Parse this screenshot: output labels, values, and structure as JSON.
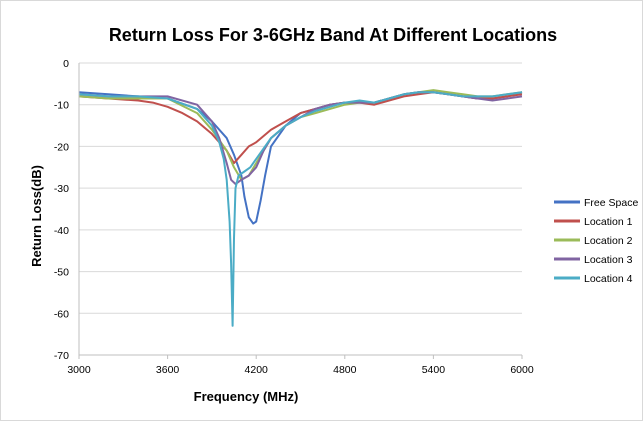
{
  "chart_data": {
    "type": "line",
    "title": "Return Loss For 3-6GHz Band At Different Locations",
    "xlabel": "Frequency  (MHz)",
    "ylabel": "Return Loss(dB)",
    "xlim": [
      3000,
      6000
    ],
    "ylim": [
      -70,
      0
    ],
    "xticks": [
      3000,
      3600,
      4200,
      4800,
      5400,
      6000
    ],
    "yticks": [
      0,
      -10,
      -20,
      -30,
      -40,
      -50,
      -60,
      -70
    ],
    "grid": "horizontal",
    "legend_position": "right",
    "series": [
      {
        "name": "Free Space",
        "color": "#4472C4",
        "x": [
          3000,
          3200,
          3400,
          3600,
          3800,
          3900,
          4000,
          4050,
          4100,
          4120,
          4150,
          4180,
          4200,
          4230,
          4260,
          4300,
          4400,
          4500,
          4600,
          4700,
          4800,
          4900,
          5000,
          5100,
          5200,
          5300,
          5400,
          5500,
          5600,
          5700,
          5800,
          5900,
          6000
        ],
        "y": [
          -7,
          -7.5,
          -8,
          -8.5,
          -11,
          -14,
          -18,
          -22,
          -27,
          -32,
          -37,
          -38.5,
          -38,
          -33,
          -27,
          -20,
          -15,
          -12,
          -11,
          -10,
          -9.5,
          -9.5,
          -9.5,
          -8.5,
          -7.5,
          -7,
          -7,
          -7.5,
          -8,
          -8.5,
          -8.5,
          -8,
          -7
        ]
      },
      {
        "name": "Location 1",
        "color": "#C0504D",
        "x": [
          3000,
          3200,
          3400,
          3500,
          3600,
          3700,
          3800,
          3900,
          4000,
          4050,
          4100,
          4150,
          4200,
          4300,
          4400,
          4500,
          4600,
          4700,
          4800,
          4900,
          5000,
          5100,
          5200,
          5300,
          5400,
          5500,
          5600,
          5700,
          5800,
          5900,
          6000
        ],
        "y": [
          -8,
          -8.5,
          -9,
          -9.5,
          -10.5,
          -12,
          -14,
          -17,
          -21,
          -24,
          -22,
          -20,
          -19,
          -16,
          -14,
          -12,
          -11,
          -10,
          -9.5,
          -9.5,
          -10,
          -9,
          -8,
          -7.5,
          -7,
          -7.5,
          -8,
          -8.5,
          -8.5,
          -8,
          -7.5
        ]
      },
      {
        "name": "Location 2",
        "color": "#9BBB59",
        "x": [
          3000,
          3200,
          3400,
          3600,
          3800,
          3900,
          4000,
          4050,
          4100,
          4150,
          4200,
          4300,
          4400,
          4500,
          4600,
          4700,
          4800,
          4900,
          5000,
          5100,
          5200,
          5300,
          5400,
          5500,
          5600,
          5700,
          5800,
          5900,
          6000
        ],
        "y": [
          -8,
          -8.5,
          -8.5,
          -8.5,
          -12,
          -16,
          -21,
          -25,
          -28,
          -27,
          -24,
          -18,
          -15,
          -13,
          -12,
          -11,
          -10,
          -9.5,
          -9.5,
          -8.5,
          -7.5,
          -7,
          -6.5,
          -7,
          -7.5,
          -8,
          -8,
          -7.5,
          -7
        ]
      },
      {
        "name": "Location 3",
        "color": "#8064A2",
        "x": [
          3000,
          3200,
          3400,
          3600,
          3800,
          3900,
          3950,
          4000,
          4030,
          4060,
          4100,
          4150,
          4200,
          4250,
          4300,
          4400,
          4500,
          4600,
          4700,
          4800,
          4900,
          5000,
          5100,
          5200,
          5300,
          5400,
          5500,
          5600,
          5700,
          5800,
          5900,
          6000
        ],
        "y": [
          -7.5,
          -8,
          -8,
          -8,
          -10,
          -14,
          -18,
          -24,
          -28,
          -29,
          -28,
          -27,
          -25,
          -21,
          -18,
          -15,
          -13,
          -11,
          -10,
          -9.5,
          -9.5,
          -9.5,
          -8.5,
          -7.5,
          -7,
          -7,
          -7.5,
          -8,
          -8.5,
          -9,
          -8.5,
          -8
        ]
      },
      {
        "name": "Location 4",
        "color": "#4BACC6",
        "x": [
          3000,
          3200,
          3400,
          3600,
          3800,
          3900,
          3950,
          3980,
          4000,
          4020,
          4030,
          4040,
          4050,
          4060,
          4080,
          4120,
          4160,
          4200,
          4300,
          4400,
          4500,
          4600,
          4700,
          4800,
          4900,
          5000,
          5100,
          5200,
          5300,
          5400,
          5500,
          5600,
          5700,
          5800,
          5900,
          6000
        ],
        "y": [
          -7.5,
          -8,
          -8,
          -8.5,
          -11,
          -15,
          -19,
          -23,
          -28,
          -38,
          -48,
          -63,
          -42,
          -30,
          -27,
          -26,
          -25,
          -23,
          -18,
          -15,
          -13,
          -11.5,
          -10.5,
          -9.5,
          -9,
          -9.5,
          -8.5,
          -7.5,
          -7,
          -7,
          -7.5,
          -8,
          -8,
          -8,
          -7.5,
          -7
        ]
      }
    ]
  }
}
